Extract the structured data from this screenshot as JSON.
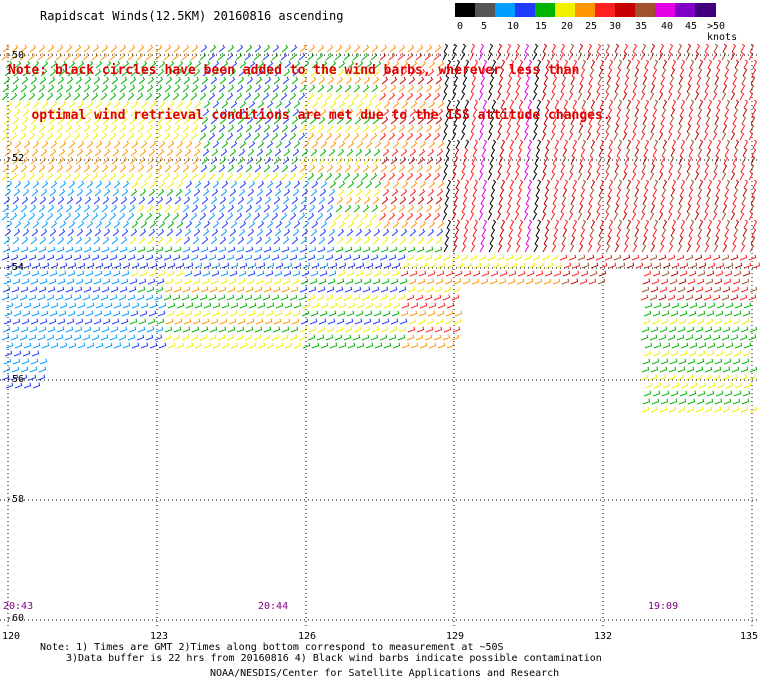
{
  "title": "Rapidscat Winds(12.5KM) 20160816 ascending",
  "note_lines": [
    "Note: black circles have been added to the wind barbs, wherever less than",
    "   optimal wind retrieval conditions are met due to the ISS attitude changes."
  ],
  "legend": {
    "labels": [
      "0",
      "5",
      "10",
      "15",
      "20",
      "25",
      "30",
      "35",
      "40",
      "45",
      ">50 knots"
    ],
    "colors": [
      "#000000",
      "#555555",
      "#009fff",
      "#1e3cff",
      "#00b400",
      "#f0f000",
      "#ff9600",
      "#ff2020",
      "#c80000",
      "#a0522d",
      "#e600e6",
      "#8000c8",
      "#400080"
    ]
  },
  "lat_labels": [
    "-50",
    "-52",
    "-54",
    "-56",
    "-58",
    "-60"
  ],
  "lon_labels": [
    "120",
    "123",
    "126",
    "129",
    "132",
    "135"
  ],
  "time_labels": [
    "20:43",
    "20:44",
    "19:09"
  ],
  "footer": {
    "line1": "Note: 1) Times are GMT 2)Times along bottom correspond to measurement at ~50S",
    "line2": "3)Data buffer is 22 hrs from 20160816 4) Black wind barbs indicate possible contamination",
    "line3": "NOAA/NESDIS/Center for Satellite Applications and Research"
  }
}
